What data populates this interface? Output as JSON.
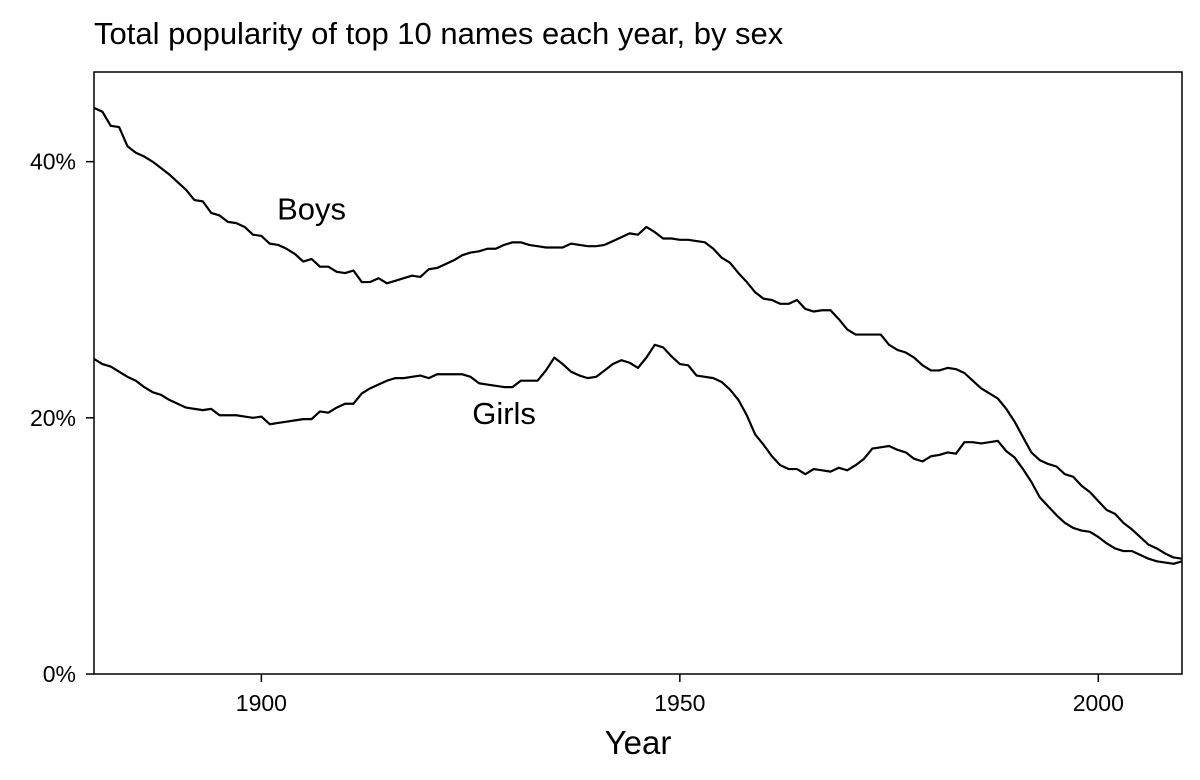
{
  "chart_data": {
    "type": "line",
    "title": "Total popularity of top 10 names each year, by sex",
    "xlabel": "Year",
    "ylabel": "",
    "xlim": [
      1880,
      2010
    ],
    "ylim": [
      0,
      47
    ],
    "x_ticks": [
      1900,
      1950,
      2000
    ],
    "x_tick_labels": [
      "1900",
      "1950",
      "2000"
    ],
    "y_ticks": [
      0,
      20,
      40
    ],
    "y_tick_labels": [
      "0%",
      "20%",
      "40%"
    ],
    "grid": false,
    "legend": "none",
    "annotations": [
      {
        "text": "Boys",
        "x": 1906,
        "y": 35.5
      },
      {
        "text": "Girls",
        "x": 1929,
        "y": 19.5
      }
    ],
    "series": [
      {
        "name": "Boys",
        "color": "#000000",
        "x": [
          1880,
          1881,
          1882,
          1883,
          1884,
          1885,
          1886,
          1887,
          1888,
          1889,
          1890,
          1891,
          1892,
          1893,
          1894,
          1895,
          1896,
          1897,
          1898,
          1899,
          1900,
          1901,
          1902,
          1903,
          1904,
          1905,
          1906,
          1907,
          1908,
          1909,
          1910,
          1911,
          1912,
          1913,
          1914,
          1915,
          1916,
          1917,
          1918,
          1919,
          1920,
          1921,
          1922,
          1923,
          1924,
          1925,
          1926,
          1927,
          1928,
          1929,
          1930,
          1931,
          1932,
          1933,
          1934,
          1935,
          1936,
          1937,
          1938,
          1939,
          1940,
          1941,
          1942,
          1943,
          1944,
          1945,
          1946,
          1947,
          1948,
          1949,
          1950,
          1951,
          1952,
          1953,
          1954,
          1955,
          1956,
          1957,
          1958,
          1959,
          1960,
          1961,
          1962,
          1963,
          1964,
          1965,
          1966,
          1967,
          1968,
          1969,
          1970,
          1971,
          1972,
          1973,
          1974,
          1975,
          1976,
          1977,
          1978,
          1979,
          1980,
          1981,
          1982,
          1983,
          1984,
          1985,
          1986,
          1987,
          1988,
          1989,
          1990,
          1991,
          1992,
          1993,
          1994,
          1995,
          1996,
          1997,
          1998,
          1999,
          2000,
          2001,
          2002,
          2003,
          2004,
          2005,
          2006,
          2007,
          2008,
          2009,
          2010
        ],
        "values": [
          44.2,
          43.9,
          42.8,
          42.7,
          41.2,
          40.7,
          40.4,
          40.0,
          39.5,
          39.0,
          38.4,
          37.8,
          37.0,
          36.9,
          36.0,
          35.8,
          35.3,
          35.2,
          34.9,
          34.3,
          34.2,
          33.6,
          33.5,
          33.2,
          32.8,
          32.2,
          32.4,
          31.8,
          31.8,
          31.4,
          31.3,
          31.5,
          30.6,
          30.6,
          30.9,
          30.5,
          30.7,
          30.9,
          31.1,
          31.0,
          31.6,
          31.7,
          32.0,
          32.3,
          32.7,
          32.9,
          33.0,
          33.2,
          33.2,
          33.5,
          33.7,
          33.7,
          33.5,
          33.4,
          33.3,
          33.3,
          33.3,
          33.6,
          33.5,
          33.4,
          33.4,
          33.5,
          33.8,
          34.1,
          34.4,
          34.3,
          34.9,
          34.5,
          34.0,
          34.0,
          33.9,
          33.9,
          33.8,
          33.7,
          33.2,
          32.5,
          32.1,
          31.3,
          30.6,
          29.8,
          29.3,
          29.2,
          28.9,
          28.9,
          29.2,
          28.5,
          28.3,
          28.4,
          28.4,
          27.7,
          26.9,
          26.5,
          26.5,
          26.5,
          26.5,
          25.7,
          25.3,
          25.1,
          24.7,
          24.1,
          23.7,
          23.7,
          23.9,
          23.8,
          23.5,
          22.9,
          22.3,
          21.9,
          21.5,
          20.7,
          19.7,
          18.5,
          17.3,
          16.7,
          16.4,
          16.2,
          15.6,
          15.4,
          14.7,
          14.2,
          13.5,
          12.8,
          12.5,
          11.8,
          11.3,
          10.7,
          10.1,
          9.8,
          9.4,
          9.1,
          9.0
        ]
      },
      {
        "name": "Girls",
        "color": "#000000",
        "x": [
          1880,
          1881,
          1882,
          1883,
          1884,
          1885,
          1886,
          1887,
          1888,
          1889,
          1890,
          1891,
          1892,
          1893,
          1894,
          1895,
          1896,
          1897,
          1898,
          1899,
          1900,
          1901,
          1902,
          1903,
          1904,
          1905,
          1906,
          1907,
          1908,
          1909,
          1910,
          1911,
          1912,
          1913,
          1914,
          1915,
          1916,
          1917,
          1918,
          1919,
          1920,
          1921,
          1922,
          1923,
          1924,
          1925,
          1926,
          1927,
          1928,
          1929,
          1930,
          1931,
          1932,
          1933,
          1934,
          1935,
          1936,
          1937,
          1938,
          1939,
          1940,
          1941,
          1942,
          1943,
          1944,
          1945,
          1946,
          1947,
          1948,
          1949,
          1950,
          1951,
          1952,
          1953,
          1954,
          1955,
          1956,
          1957,
          1958,
          1959,
          1960,
          1961,
          1962,
          1963,
          1964,
          1965,
          1966,
          1967,
          1968,
          1969,
          1970,
          1971,
          1972,
          1973,
          1974,
          1975,
          1976,
          1977,
          1978,
          1979,
          1980,
          1981,
          1982,
          1983,
          1984,
          1985,
          1986,
          1987,
          1988,
          1989,
          1990,
          1991,
          1992,
          1993,
          1994,
          1995,
          1996,
          1997,
          1998,
          1999,
          2000,
          2001,
          2002,
          2003,
          2004,
          2005,
          2006,
          2007,
          2008,
          2009,
          2010
        ],
        "values": [
          24.6,
          24.2,
          24.0,
          23.6,
          23.2,
          22.9,
          22.4,
          22.0,
          21.8,
          21.4,
          21.1,
          20.8,
          20.7,
          20.6,
          20.7,
          20.2,
          20.2,
          20.2,
          20.1,
          20.0,
          20.1,
          19.5,
          19.6,
          19.7,
          19.8,
          19.9,
          19.9,
          20.5,
          20.4,
          20.8,
          21.1,
          21.1,
          21.9,
          22.3,
          22.6,
          22.9,
          23.1,
          23.1,
          23.2,
          23.3,
          23.1,
          23.4,
          23.4,
          23.4,
          23.4,
          23.2,
          22.7,
          22.6,
          22.5,
          22.4,
          22.4,
          22.9,
          22.9,
          22.9,
          23.7,
          24.7,
          24.2,
          23.6,
          23.3,
          23.1,
          23.2,
          23.7,
          24.2,
          24.5,
          24.3,
          23.9,
          24.7,
          25.7,
          25.5,
          24.8,
          24.2,
          24.1,
          23.3,
          23.2,
          23.1,
          22.8,
          22.2,
          21.4,
          20.2,
          18.7,
          17.9,
          17.0,
          16.3,
          16.0,
          16.0,
          15.6,
          16.0,
          15.9,
          15.8,
          16.1,
          15.9,
          16.3,
          16.8,
          17.6,
          17.7,
          17.8,
          17.5,
          17.3,
          16.8,
          16.6,
          17.0,
          17.1,
          17.3,
          17.2,
          18.1,
          18.1,
          18.0,
          18.1,
          18.2,
          17.4,
          16.9,
          16.0,
          15.0,
          13.8,
          13.1,
          12.4,
          11.8,
          11.4,
          11.2,
          11.1,
          10.7,
          10.2,
          9.8,
          9.6,
          9.6,
          9.3,
          9.0,
          8.8,
          8.7,
          8.6,
          8.8
        ]
      }
    ]
  }
}
